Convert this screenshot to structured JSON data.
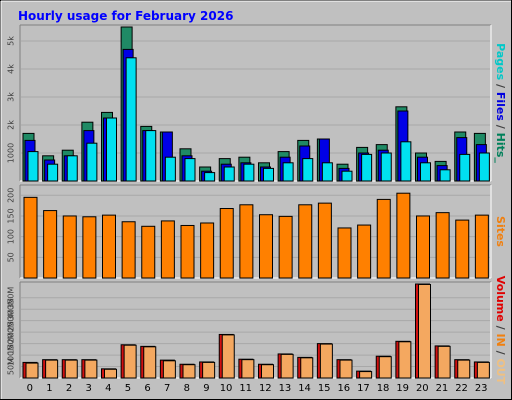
{
  "chart_data": {
    "type": "bar",
    "title": "Hourly usage for February 2026",
    "categories": [
      "0",
      "1",
      "2",
      "3",
      "4",
      "5",
      "6",
      "7",
      "8",
      "9",
      "10",
      "11",
      "12",
      "13",
      "14",
      "15",
      "16",
      "17",
      "18",
      "19",
      "20",
      "21",
      "22",
      "23"
    ],
    "panels": [
      {
        "id": "hits",
        "ylim": [
          0,
          5500
        ],
        "ticks": [
          {
            "label": "1000",
            "value": 1000
          },
          {
            "label": "2k",
            "value": 2000
          },
          {
            "label": "3k",
            "value": 3000
          },
          {
            "label": "4k",
            "value": 4000
          },
          {
            "label": "5k",
            "value": 5000
          }
        ],
        "side_label": [
          {
            "text": "Pages",
            "color": "#00c8c8"
          },
          {
            "text": " / ",
            "color": "#404040"
          },
          {
            "text": "Files",
            "color": "#0000e0"
          },
          {
            "text": " / ",
            "color": "#404040"
          },
          {
            "text": "Hits_",
            "color": "#00805a"
          }
        ],
        "series": [
          {
            "name": "Hits",
            "color": "#1f8a65",
            "values": [
              1700,
              900,
              1100,
              2100,
              2450,
              5500,
              1950,
              1750,
              1150,
              500,
              800,
              850,
              650,
              1050,
              1450,
              1500,
              600,
              1200,
              1300,
              2650,
              1000,
              700,
              1750,
              1700
            ]
          },
          {
            "name": "Files",
            "color": "#0000e6",
            "values": [
              1450,
              750,
              900,
              1800,
              2250,
              4700,
              1800,
              1750,
              900,
              350,
              600,
              650,
              500,
              850,
              1250,
              1500,
              450,
              1000,
              1100,
              2500,
              850,
              550,
              1550,
              1300
            ]
          },
          {
            "name": "Pages",
            "color": "#00e0f0",
            "values": [
              1050,
              600,
              900,
              1350,
              2250,
              4400,
              1800,
              850,
              800,
              300,
              500,
              600,
              450,
              650,
              800,
              650,
              350,
              950,
              1000,
              1400,
              650,
              400,
              950,
              1000
            ]
          }
        ]
      },
      {
        "id": "sites",
        "ylim": [
          0,
          220
        ],
        "ticks": [
          {
            "label": "50",
            "value": 50
          },
          {
            "label": "100",
            "value": 100
          },
          {
            "label": "150",
            "value": 150
          },
          {
            "label": "200",
            "value": 200
          }
        ],
        "side_label": [
          {
            "text": "Sites",
            "color": "#f08010"
          }
        ],
        "series": [
          {
            "name": "Sites",
            "color": "#ff8000",
            "values": [
              195,
              163,
              150,
              148,
              152,
              136,
              125,
              138,
              127,
              133,
              168,
              177,
              153,
              149,
              177,
              181,
              121,
              128,
              190,
              205,
              150,
              158,
              140,
              152
            ]
          }
        ]
      },
      {
        "id": "volume",
        "ylim": [
          0,
          410
        ],
        "ticks": [
          {
            "label": "50M",
            "value": 50
          },
          {
            "label": "100M",
            "value": 100
          },
          {
            "label": "150M",
            "value": 150
          },
          {
            "label": "200M",
            "value": 200
          },
          {
            "label": "250M",
            "value": 250
          },
          {
            "label": "300M",
            "value": 300
          },
          {
            "label": "350M",
            "value": 350
          }
        ],
        "side_label": [
          {
            "text": "Volume",
            "color": "#e00000"
          },
          {
            "text": " ",
            "color": "#404040"
          },
          {
            "text": "/",
            "color": "#404040"
          },
          {
            "text": " ",
            "color": "#404040"
          },
          {
            "text": "IN",
            "color": "#f08010"
          },
          {
            "text": " / ",
            "color": "#404040"
          },
          {
            "text": "OUT",
            "color": "#f0c080"
          }
        ],
        "series": [
          {
            "name": "Volume",
            "color": "#d01010",
            "values": [
              68,
              80,
              80,
              80,
              40,
              145,
              138,
              78,
              60,
              70,
              190,
              82,
              60,
              105,
              90,
              150,
              80,
              30,
              95,
              160,
              410,
              140,
              80,
              70
            ]
          },
          {
            "name": "IN",
            "color": "#f4a860",
            "values": [
              65,
              78,
              78,
              78,
              38,
              143,
              136,
              75,
              58,
              68,
              188,
              80,
              58,
              103,
              88,
              148,
              78,
              28,
              93,
              158,
              408,
              138,
              78,
              68
            ]
          }
        ]
      }
    ]
  }
}
